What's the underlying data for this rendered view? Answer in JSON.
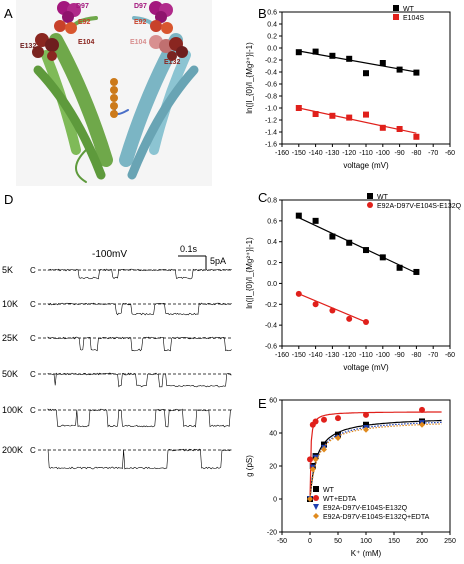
{
  "panels": {
    "A": "A",
    "B": "B",
    "C": "C",
    "D": "D",
    "E": "E"
  },
  "structure": {
    "labels": [
      "D97",
      "E92",
      "E104",
      "E132",
      "D97",
      "E92",
      "E104",
      "E132"
    ],
    "colors": {
      "helix_left": "#6fa84a",
      "helix_right": "#7bb5c4",
      "d97": "#a3177d",
      "e92": "#c8412a",
      "e104": "#8a2620",
      "e132": "#6e1e1e",
      "ion": "#cc7a1a",
      "background": "#f5f5f5"
    }
  },
  "traces": {
    "voltage_label": "-100mV",
    "time_scale": "0.1s",
    "current_scale": "5pA",
    "closed_label": "C",
    "rows": [
      {
        "label": "5K",
        "closed": "C"
      },
      {
        "label": "10K",
        "closed": "C"
      },
      {
        "label": "25K",
        "closed": "C"
      },
      {
        "label": "50K",
        "closed": "C"
      },
      {
        "label": "100K",
        "closed": "C"
      },
      {
        "label": "200K",
        "closed": "C"
      }
    ]
  },
  "chart_data": [
    {
      "id": "B",
      "type": "scatter",
      "xlabel": "voltage (mV)",
      "ylabel": "ln(|I_{0}/I_{Mg²⁺}|-1)",
      "xlim": [
        -160,
        -60
      ],
      "ylim": [
        -1.6,
        0.6
      ],
      "xticks": [
        -160,
        -150,
        -140,
        -130,
        -120,
        -110,
        -100,
        -90,
        -80,
        -70,
        -60
      ],
      "yticks": [
        -1.6,
        -1.4,
        -1.2,
        -1.0,
        -0.8,
        -0.6,
        -0.4,
        -0.2,
        0.0,
        0.2,
        0.4,
        0.6
      ],
      "ytick_labels": [
        "-1.6",
        "-1.4",
        "-1.2",
        "-1.0",
        "-0.8",
        "-0.6",
        "-0.4",
        "-0.2",
        "0.0",
        "0.2",
        "0.4",
        "0.6"
      ],
      "legend_position": "top-right",
      "series": [
        {
          "name": "WT",
          "color": "#000000",
          "marker": "square",
          "x": [
            -150,
            -140,
            -130,
            -120,
            -110,
            -100,
            -90,
            -80
          ],
          "y": [
            -0.07,
            -0.06,
            -0.13,
            -0.18,
            -0.42,
            -0.25,
            -0.36,
            -0.41
          ],
          "fit": [
            [
              -150,
              -0.05
            ],
            [
              -80,
              -0.4
            ]
          ]
        },
        {
          "name": "E104S",
          "color": "#e0201b",
          "marker": "square",
          "x": [
            -150,
            -140,
            -130,
            -120,
            -110,
            -100,
            -90,
            -80
          ],
          "y": [
            -1.0,
            -1.1,
            -1.13,
            -1.16,
            -1.11,
            -1.33,
            -1.35,
            -1.48
          ],
          "fit": [
            [
              -150,
              -1.0
            ],
            [
              -80,
              -1.42
            ]
          ]
        }
      ]
    },
    {
      "id": "C",
      "type": "scatter",
      "xlabel": "voltage (mV)",
      "ylabel": "ln(|I_{0}/I_{Mg²⁺}|-1)",
      "xlim": [
        -160,
        -60
      ],
      "ylim": [
        -0.6,
        0.8
      ],
      "xticks": [
        -160,
        -150,
        -140,
        -130,
        -120,
        -110,
        -100,
        -90,
        -80,
        -70,
        -60
      ],
      "yticks": [
        -0.6,
        -0.4,
        -0.2,
        0.0,
        0.2,
        0.4,
        0.6,
        0.8
      ],
      "ytick_labels": [
        "-0.6",
        "-0.4",
        "-0.2",
        "0.0",
        "0.2",
        "0.4",
        "0.6",
        "0.8"
      ],
      "legend_position": "top-right",
      "series": [
        {
          "name": "WT",
          "color": "#000000",
          "marker": "square",
          "x": [
            -150,
            -140,
            -130,
            -120,
            -110,
            -100,
            -90,
            -80
          ],
          "y": [
            0.65,
            0.6,
            0.45,
            0.39,
            0.32,
            0.25,
            0.15,
            0.11
          ],
          "fit": [
            [
              -150,
              0.63
            ],
            [
              -80,
              0.1
            ]
          ]
        },
        {
          "name": "E92A-D97V-E104S-E132Q",
          "color": "#e0201b",
          "marker": "circle",
          "x": [
            -150,
            -140,
            -130,
            -120,
            -110
          ],
          "y": [
            -0.1,
            -0.2,
            -0.26,
            -0.34,
            -0.37
          ],
          "fit": [
            [
              -150,
              -0.1
            ],
            [
              -110,
              -0.37
            ]
          ]
        }
      ]
    },
    {
      "id": "E",
      "type": "scatter",
      "xlabel": "K⁺ (mM)",
      "ylabel": "g (pS)",
      "xlim": [
        -50,
        250
      ],
      "ylim": [
        -20,
        60
      ],
      "xticks": [
        -50,
        0,
        50,
        100,
        150,
        200,
        250
      ],
      "yticks": [
        -20,
        0,
        20,
        40,
        60
      ],
      "legend_position": "bottom-left",
      "series": [
        {
          "name": "WT",
          "color": "#000000",
          "marker": "square",
          "x": [
            0,
            5,
            10,
            25,
            50,
            100,
            200
          ],
          "y": [
            0,
            20,
            26,
            33,
            39,
            45,
            47
          ],
          "curve": {
            "gmax": 50,
            "k": 12,
            "style": "solid"
          }
        },
        {
          "name": "WT+EDTA",
          "color": "#e0201b",
          "marker": "circle",
          "x": [
            0,
            5,
            10,
            25,
            50,
            100,
            200
          ],
          "y": [
            24,
            45,
            47,
            48,
            49,
            51,
            54
          ],
          "curve": {
            "gmax": 53,
            "k": 1.2,
            "style": "solid"
          }
        },
        {
          "name": "E92A-D97V-E104S-E132Q",
          "color": "#1f3fb0",
          "marker": "triangle-down",
          "x": [
            0,
            5,
            10,
            25,
            50,
            100,
            200
          ],
          "y": [
            0,
            19,
            25,
            31,
            37,
            43,
            46
          ],
          "curve": {
            "gmax": 49,
            "k": 13,
            "style": "dotted"
          }
        },
        {
          "name": "E92A-D97V-E104S-E132Q+EDTA",
          "color": "#e08a1e",
          "marker": "diamond",
          "x": [
            0,
            5,
            10,
            25,
            50,
            100,
            200
          ],
          "y": [
            0,
            18,
            24,
            30,
            37,
            42,
            45
          ],
          "curve": {
            "gmax": 48,
            "k": 13,
            "style": "dotted"
          }
        }
      ]
    }
  ]
}
